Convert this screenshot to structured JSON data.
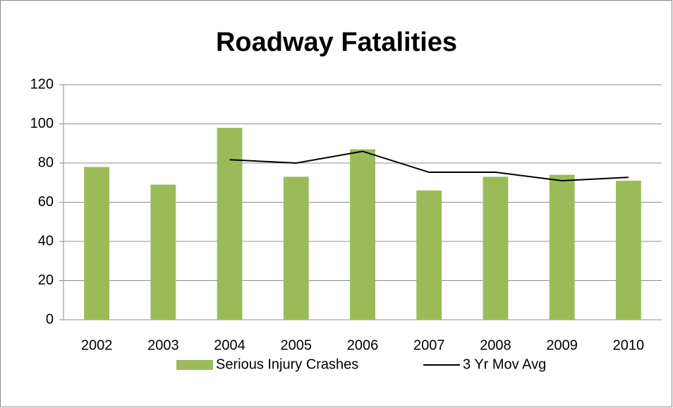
{
  "chart_data": {
    "type": "bar",
    "title": "Roadway Fatalities",
    "categories": [
      "2002",
      "2003",
      "2004",
      "2005",
      "2006",
      "2007",
      "2008",
      "2009",
      "2010"
    ],
    "series": [
      {
        "name": "Serious Injury Crashes",
        "type": "bar",
        "color": "#9bbb59",
        "values": [
          78,
          69,
          98,
          73,
          87,
          66,
          73,
          74,
          71
        ]
      },
      {
        "name": "3 Yr Mov Avg",
        "type": "line",
        "color": "#000000",
        "values": [
          null,
          null,
          81.7,
          80,
          86,
          75.3,
          75.3,
          71,
          72.7
        ]
      }
    ],
    "ylim": [
      0,
      120
    ],
    "yticks": [
      0,
      20,
      40,
      60,
      80,
      100,
      120
    ],
    "grid": true,
    "legend": "bottom"
  }
}
